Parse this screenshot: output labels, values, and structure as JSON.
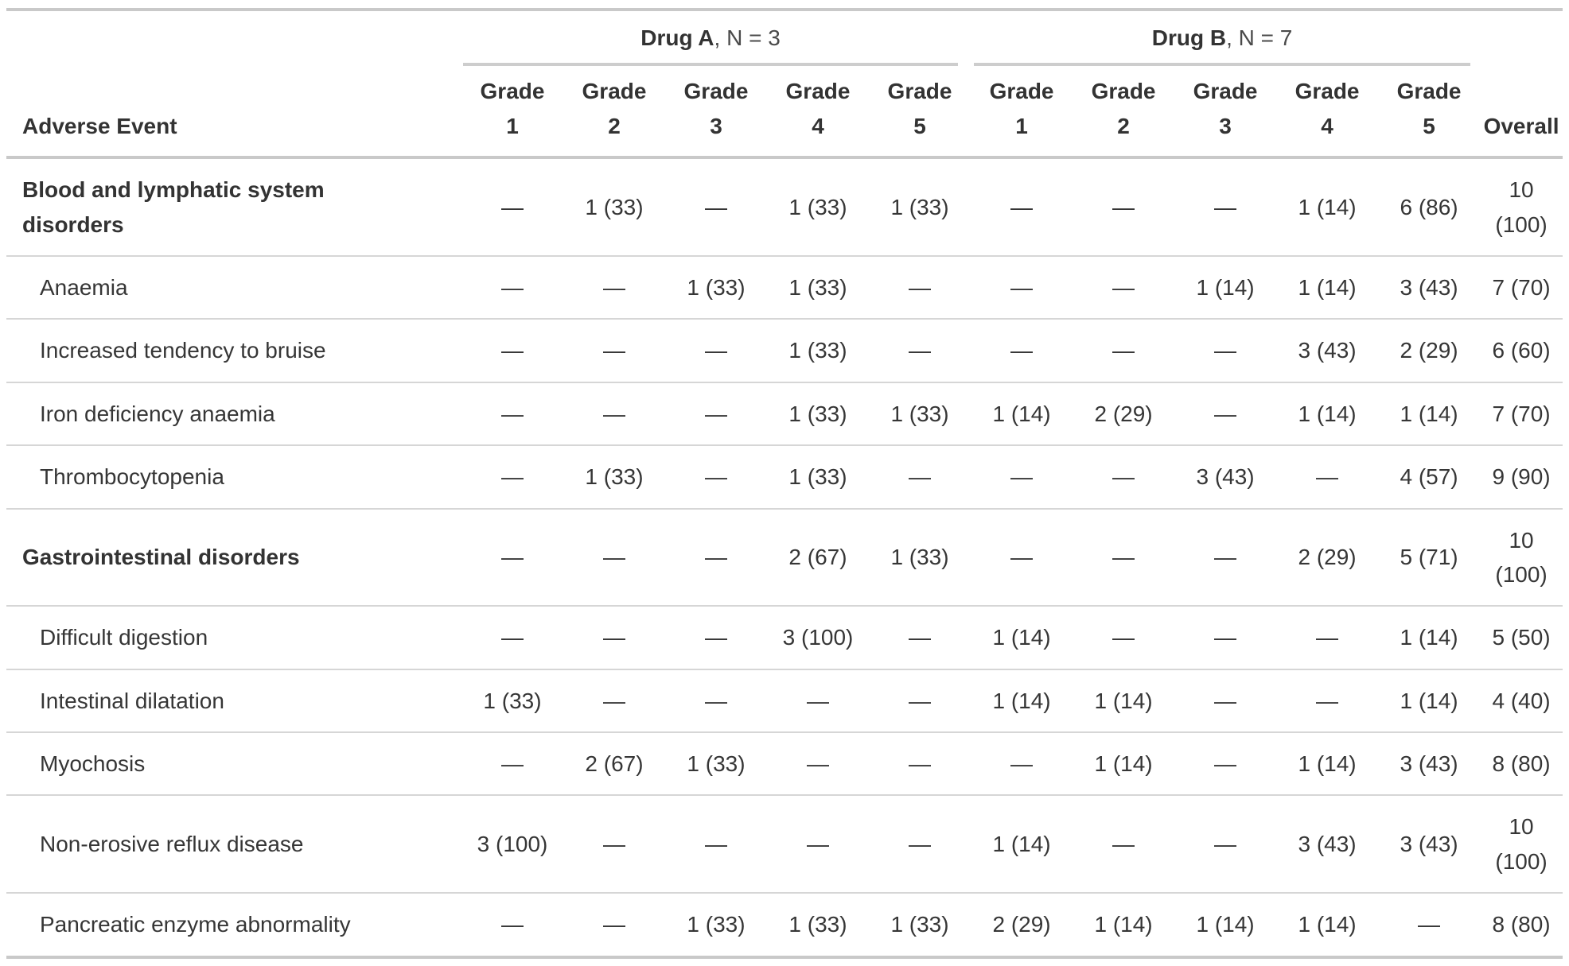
{
  "chart_data": {
    "type": "table",
    "stub_header": "Adverse Event",
    "spanners": [
      {
        "drug": "Drug A",
        "n_label": ", N = 3"
      },
      {
        "drug": "Drug B",
        "n_label": ", N = 7"
      }
    ],
    "grade_word": "Grade",
    "grade_numbers": [
      "1",
      "2",
      "3",
      "4",
      "5"
    ],
    "overall_label": "Overall",
    "columns": [
      "Adverse Event",
      "Drug A Grade 1",
      "Drug A Grade 2",
      "Drug A Grade 3",
      "Drug A Grade 4",
      "Drug A Grade 5",
      "Drug B Grade 1",
      "Drug B Grade 2",
      "Drug B Grade 3",
      "Drug B Grade 4",
      "Drug B Grade 5",
      "Overall"
    ],
    "rows": [
      {
        "label": "Blood and lymphatic system disorders",
        "group": true,
        "values": [
          "—",
          "1 (33)",
          "—",
          "1 (33)",
          "1 (33)",
          "—",
          "—",
          "—",
          "1 (14)",
          "6 (86)",
          "10 (100)"
        ]
      },
      {
        "label": "Anaemia",
        "group": false,
        "values": [
          "—",
          "—",
          "1 (33)",
          "1 (33)",
          "—",
          "—",
          "—",
          "1 (14)",
          "1 (14)",
          "3 (43)",
          "7 (70)"
        ]
      },
      {
        "label": "Increased tendency to bruise",
        "group": false,
        "values": [
          "—",
          "—",
          "—",
          "1 (33)",
          "—",
          "—",
          "—",
          "—",
          "3 (43)",
          "2 (29)",
          "6 (60)"
        ]
      },
      {
        "label": "Iron deficiency anaemia",
        "group": false,
        "values": [
          "—",
          "—",
          "—",
          "1 (33)",
          "1 (33)",
          "1 (14)",
          "2 (29)",
          "—",
          "1 (14)",
          "1 (14)",
          "7 (70)"
        ]
      },
      {
        "label": "Thrombocytopenia",
        "group": false,
        "values": [
          "—",
          "1 (33)",
          "—",
          "1 (33)",
          "—",
          "—",
          "—",
          "3 (43)",
          "—",
          "4 (57)",
          "9 (90)"
        ]
      },
      {
        "label": "Gastrointestinal disorders",
        "group": true,
        "values": [
          "—",
          "—",
          "—",
          "2 (67)",
          "1 (33)",
          "—",
          "—",
          "—",
          "2 (29)",
          "5 (71)",
          "10 (100)"
        ]
      },
      {
        "label": "Difficult digestion",
        "group": false,
        "values": [
          "—",
          "—",
          "—",
          "3 (100)",
          "—",
          "1 (14)",
          "—",
          "—",
          "—",
          "1 (14)",
          "5 (50)"
        ]
      },
      {
        "label": "Intestinal dilatation",
        "group": false,
        "values": [
          "1 (33)",
          "—",
          "—",
          "—",
          "—",
          "1 (14)",
          "1 (14)",
          "—",
          "—",
          "1 (14)",
          "4 (40)"
        ]
      },
      {
        "label": "Myochosis",
        "group": false,
        "values": [
          "—",
          "2 (67)",
          "1 (33)",
          "—",
          "—",
          "—",
          "1 (14)",
          "—",
          "1 (14)",
          "3 (43)",
          "8 (80)"
        ]
      },
      {
        "label": "Non-erosive reflux disease",
        "group": false,
        "values": [
          "3 (100)",
          "—",
          "—",
          "—",
          "—",
          "1 (14)",
          "—",
          "—",
          "3 (43)",
          "3 (43)",
          "10 (100)"
        ]
      },
      {
        "label": "Pancreatic enzyme abnormality",
        "group": false,
        "values": [
          "—",
          "—",
          "1 (33)",
          "1 (33)",
          "1 (33)",
          "2 (29)",
          "1 (14)",
          "1 (14)",
          "1 (14)",
          "—",
          "8 (80)"
        ]
      }
    ]
  },
  "colors": {
    "text": "#363636",
    "header_text": "#333333",
    "border_heavy": "#C9C9C9",
    "border_light": "#D6D6D6",
    "background": "#FFFFFF"
  }
}
